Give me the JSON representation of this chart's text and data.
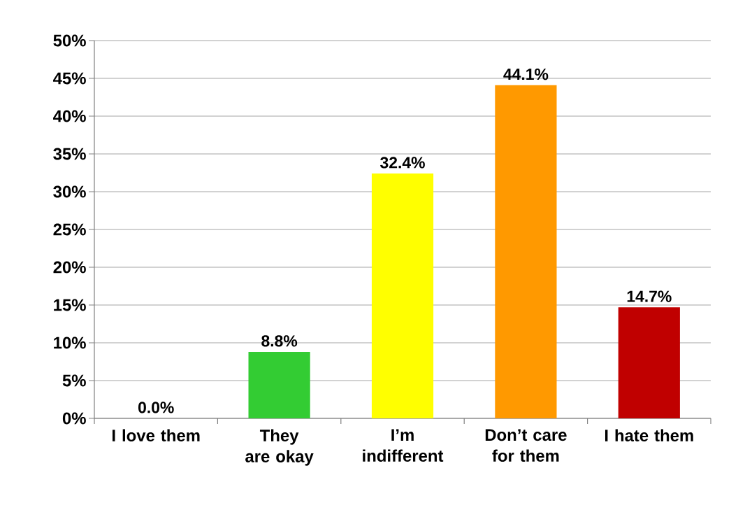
{
  "chart_data": {
    "type": "bar",
    "categories": [
      "I love them",
      "They are okay",
      "I’m indifferent",
      "Don’t care for them",
      "I hate them"
    ],
    "values": [
      0,
      8.8,
      32.4,
      44.1,
      14.7
    ],
    "colors": [
      null,
      "#33cc33",
      "#ffff00",
      "#ff9900",
      "#c00000"
    ],
    "value_labels": [
      "0.0%",
      "8.8%",
      "32.4%",
      "44.1%",
      "14.7%"
    ],
    "ylim": [
      0,
      50
    ],
    "yticks": [
      {
        "value": 0,
        "label": "0%"
      },
      {
        "value": 5,
        "label": "5%"
      },
      {
        "value": 10,
        "label": "10%"
      },
      {
        "value": 15,
        "label": "15%"
      },
      {
        "value": 20,
        "label": "20%"
      },
      {
        "value": 25,
        "label": "25%"
      },
      {
        "value": 30,
        "label": "30%"
      },
      {
        "value": 35,
        "label": "35%"
      },
      {
        "value": 40,
        "label": "40%"
      },
      {
        "value": 45,
        "label": "45%"
      },
      {
        "value": 50,
        "label": "50%"
      }
    ],
    "grid": "y"
  }
}
